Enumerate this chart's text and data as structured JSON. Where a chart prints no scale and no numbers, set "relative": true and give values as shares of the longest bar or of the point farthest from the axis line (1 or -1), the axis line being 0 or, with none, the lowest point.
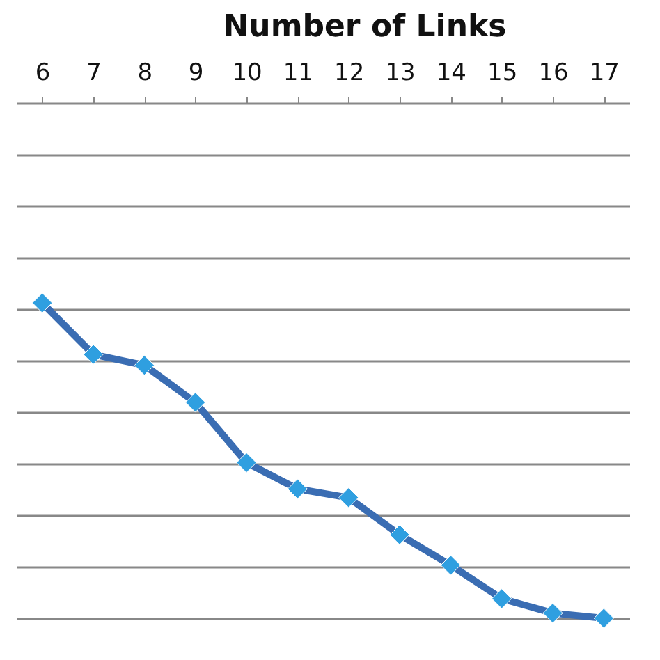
{
  "chart_data": {
    "type": "line",
    "title": "Number of Links",
    "relative": true,
    "categories": [
      "6",
      "7",
      "8",
      "9",
      "10",
      "11",
      "12",
      "13",
      "14",
      "15",
      "16",
      "17"
    ],
    "series": [
      {
        "color": "#2f9fe0",
        "values": [
          -0.388,
          -0.488,
          -0.509,
          -0.581,
          -0.698,
          -0.749,
          -0.766,
          -0.838,
          -0.897,
          -0.962,
          -0.99,
          -1
        ]
      }
    ],
    "marker": "diamond",
    "grid": "y",
    "legend": false
  }
}
